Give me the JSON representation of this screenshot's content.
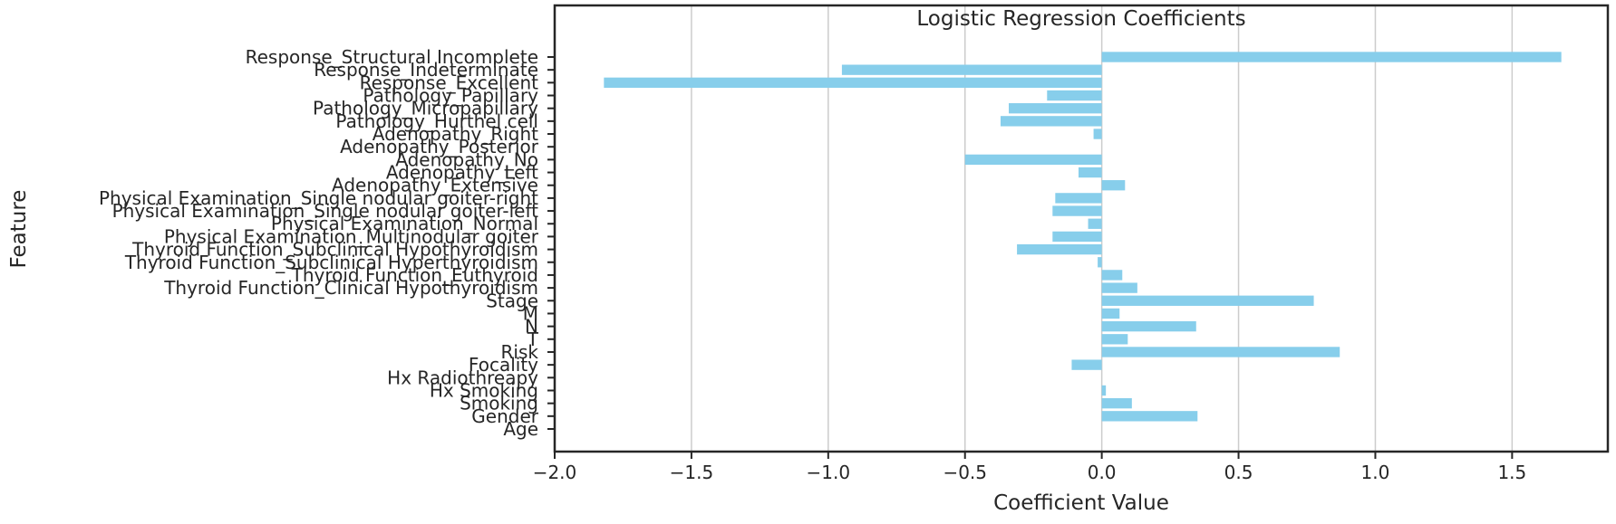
{
  "chart_data": {
    "type": "bar",
    "orientation": "horizontal",
    "title": "Logistic Regression Coefficients",
    "xlabel": "Coefficient Value",
    "ylabel": "Feature",
    "xlim": [
      -2.0,
      1.85
    ],
    "xticks": [
      -2.0,
      -1.5,
      -1.0,
      -0.5,
      0.0,
      0.5,
      1.0,
      1.5
    ],
    "xtick_labels": [
      "−2.0",
      "−1.5",
      "−1.0",
      "−0.5",
      "0.0",
      "0.5",
      "1.0",
      "1.5"
    ],
    "grid": "x",
    "bar_color": "#87ceeb",
    "categories": [
      "Age",
      "Gender",
      "Smoking",
      "Hx Smoking",
      "Hx Radiothreapy",
      "Focality",
      "Risk",
      "T",
      "N",
      "M",
      "Stage",
      "Thyroid Function_Clinical Hypothyroidism",
      "Thyroid Function_Euthyroid",
      "Thyroid Function_Subclinical Hyperthyroidism",
      "Thyroid Function_Subclinical Hypothyroidism",
      "Physical Examination_Multinodular goiter",
      "Physical Examination_Normal",
      "Physical Examination_Single nodular goiter-left",
      "Physical Examination_Single nodular goiter-right",
      "Adenopathy_Extensive",
      "Adenopathy_Left",
      "Adenopathy_No",
      "Adenopathy_Posterior",
      "Adenopathy_Right",
      "Pathology_Hurthel cell",
      "Pathology_Micropapillary",
      "Pathology_Papillary",
      "Response_Excellent",
      "Response_Indeterminate",
      "Response_Structural Incomplete"
    ],
    "values": [
      0.0,
      0.35,
      0.11,
      0.015,
      0.0,
      -0.11,
      0.87,
      0.095,
      0.345,
      0.065,
      0.775,
      0.13,
      0.075,
      -0.015,
      -0.31,
      -0.18,
      -0.05,
      -0.18,
      -0.17,
      0.085,
      -0.085,
      -0.5,
      0.0,
      -0.03,
      -0.37,
      -0.34,
      -0.2,
      -1.82,
      -0.95,
      1.68
    ]
  }
}
